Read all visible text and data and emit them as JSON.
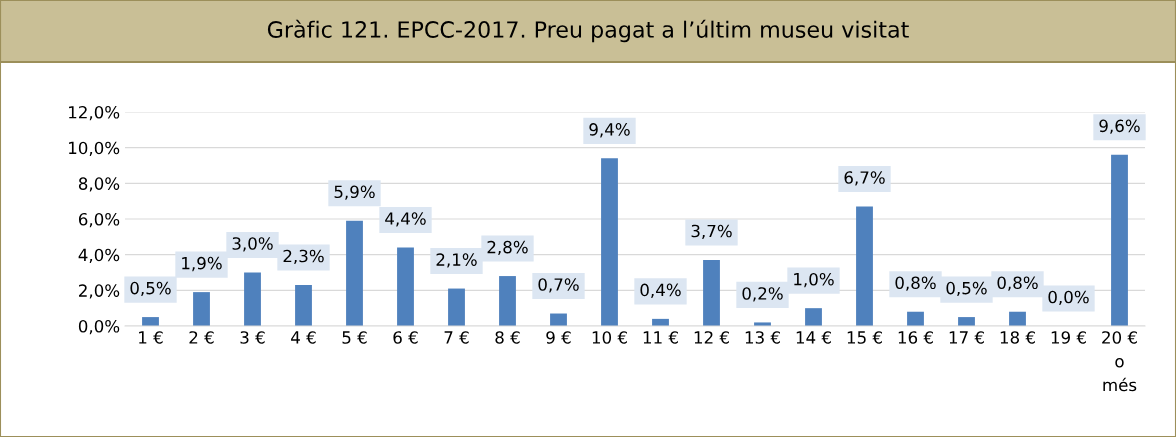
{
  "chart_data": {
    "type": "bar",
    "title": "Gràfic 121. EPCC-2017. Preu pagat a l’últim museu visitat",
    "categories": [
      "1 €",
      "2 €",
      "3 €",
      "4 €",
      "5 €",
      "6 €",
      "7 €",
      "8 €",
      "9 €",
      "10 €",
      "11 €",
      "12 €",
      "13 €",
      "14 €",
      "15 €",
      "16 €",
      "17 €",
      "18 €",
      "19 €",
      "20 €\no\nmés"
    ],
    "values": [
      0.5,
      1.9,
      3.0,
      2.3,
      5.9,
      4.4,
      2.1,
      2.8,
      0.7,
      9.4,
      0.4,
      3.7,
      0.2,
      1.0,
      6.7,
      0.8,
      0.5,
      0.8,
      0.0,
      9.6
    ],
    "value_labels": [
      "0,5%",
      "1,9%",
      "3,0%",
      "2,3%",
      "5,9%",
      "4,4%",
      "2,1%",
      "2,8%",
      "0,7%",
      "9,4%",
      "0,4%",
      "3,7%",
      "0,2%",
      "1,0%",
      "6,7%",
      "0,8%",
      "0,5%",
      "0,8%",
      "0,0%",
      "9,6%"
    ],
    "color": "#4f81bd",
    "ylim": [
      0,
      12
    ],
    "yticks": [
      {
        "value": 0,
        "label": "0,0%"
      },
      {
        "value": 2,
        "label": "2,0%"
      },
      {
        "value": 4,
        "label": "4,0%"
      },
      {
        "value": 6,
        "label": "6,0%"
      },
      {
        "value": 8,
        "label": "8,0%"
      },
      {
        "value": 10,
        "label": "10,0%"
      },
      {
        "value": 12,
        "label": "12,0%"
      }
    ],
    "grid": "y",
    "legend": false
  }
}
